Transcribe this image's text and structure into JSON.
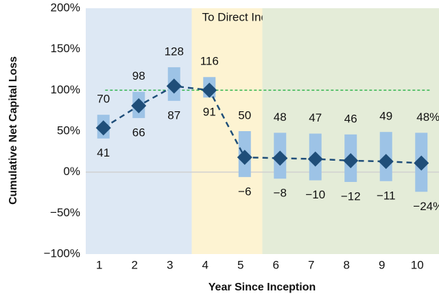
{
  "chart_data": {
    "type": "range-median",
    "x_label": "Year Since Inception",
    "y_label": "Cumulative Net Capital Loss",
    "categories": [
      "1",
      "2",
      "3",
      "4",
      "5",
      "6",
      "7",
      "8",
      "9",
      "10"
    ],
    "values": [
      54,
      81,
      105,
      100,
      18,
      17,
      16,
      14,
      13,
      11
    ],
    "color": "#1f4e79",
    "range_low": {
      "values": [
        41,
        66,
        87,
        91,
        -6,
        -8,
        -10,
        -12,
        -11,
        -24
      ],
      "value_labels": [
        "41",
        "66",
        "87",
        "91",
        "−6",
        "−8",
        "−10",
        "−12",
        "−11",
        "−24%"
      ]
    },
    "range_high": {
      "values": [
        70,
        98,
        128,
        116,
        50,
        48,
        47,
        46,
        49,
        48
      ],
      "value_labels": [
        "70",
        "98",
        "128",
        "116",
        "50",
        "48",
        "47",
        "46",
        "49",
        "48%"
      ]
    },
    "range_color": "#9dc3e6",
    "ylim": [
      -100,
      200
    ],
    "yticks": [
      {
        "value": -100,
        "label": "−100%"
      },
      {
        "value": -50,
        "label": "−50%"
      },
      {
        "value": 0,
        "label": "0%"
      },
      {
        "value": 50,
        "label": "50%"
      },
      {
        "value": 100,
        "label": "100%"
      },
      {
        "value": 150,
        "label": "150%"
      },
      {
        "value": 200,
        "label": "200%"
      }
    ],
    "reference_line": {
      "value": 100,
      "color": "#2db34a"
    },
    "bands": [
      {
        "from": 1,
        "to": 3,
        "color": "#dde8f4"
      },
      {
        "from": 4,
        "to": 5,
        "color": "#fdf3d2",
        "label": "To Direct Indexing"
      },
      {
        "from": 6,
        "to": 10,
        "color": "#e4ecd8"
      }
    ]
  }
}
